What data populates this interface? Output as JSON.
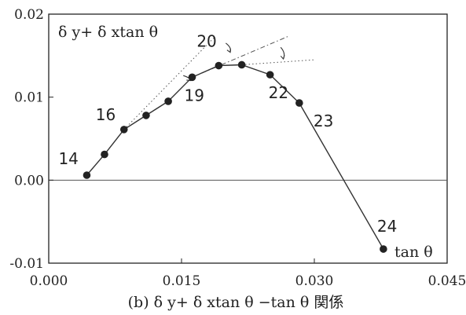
{
  "chart_data": {
    "type": "line",
    "ylabel": "δ y+ δ xtan θ",
    "xlabel": "tan θ",
    "caption": "(b) δ y+ δ xtan θ −tan θ 関係",
    "xlim": [
      0.0,
      0.045
    ],
    "ylim": [
      -0.01,
      0.02
    ],
    "xticks": [
      "0.000",
      "0.015",
      "0.030",
      "0.045"
    ],
    "yticks": [
      "-0.01",
      "0.00",
      "0.01",
      "0.02"
    ],
    "grid": false,
    "series": [
      {
        "x": [
          0.0043,
          0.0063,
          0.0085,
          0.011,
          0.0135,
          0.0162,
          0.0192,
          0.0218,
          0.025,
          0.0283,
          0.0378
        ],
        "y": [
          0.0006,
          0.0031,
          0.0061,
          0.0078,
          0.0095,
          0.0124,
          0.0138,
          0.0139,
          0.0127,
          0.0093,
          -0.0083
        ]
      }
    ],
    "point_labels": [
      {
        "text": "14",
        "x": 0.0043,
        "y": 0.0006
      },
      {
        "text": "16",
        "x": 0.0085,
        "y": 0.0061
      },
      {
        "text": "19",
        "x": 0.0162,
        "y": 0.0124
      },
      {
        "text": "20",
        "x": 0.0192,
        "y": 0.0138
      },
      {
        "text": "22",
        "x": 0.025,
        "y": 0.0127
      },
      {
        "text": "23",
        "x": 0.0283,
        "y": 0.0093
      },
      {
        "text": "24",
        "x": 0.0378,
        "y": -0.0083
      }
    ],
    "annotations": {
      "tangent_lines": [
        {
          "style": "dotted",
          "from": [
            0.0085,
            0.0061
          ],
          "to": [
            0.0187,
            0.0172
          ]
        },
        {
          "style": "dashdot",
          "from": [
            0.0162,
            0.0124
          ],
          "to": [
            0.027,
            0.0173
          ]
        },
        {
          "style": "dotted",
          "from": [
            0.0218,
            0.0139
          ],
          "to": [
            0.03,
            0.0145
          ]
        }
      ],
      "angle_arrows": [
        {
          "from": [
            0.02,
            0.0165
          ],
          "to": [
            0.0205,
            0.0154
          ]
        },
        {
          "from": [
            0.0262,
            0.016
          ],
          "to": [
            0.0265,
            0.0146
          ]
        },
        {
          "from": [
            0.0152,
            0.0126
          ],
          "to": [
            0.016,
            0.012
          ]
        }
      ]
    }
  }
}
